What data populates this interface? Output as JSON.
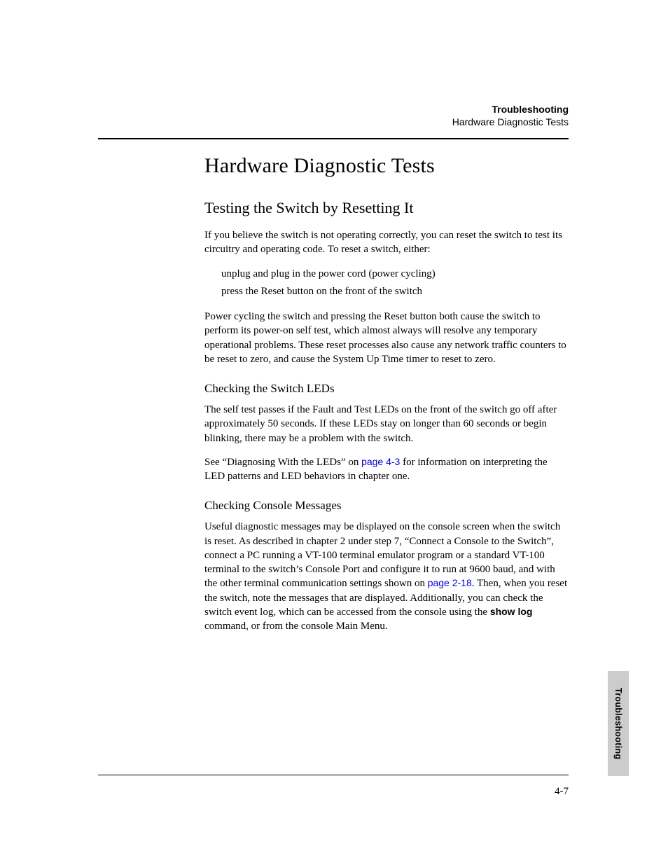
{
  "header": {
    "chapter": "Troubleshooting",
    "section": "Hardware Diagnostic Tests"
  },
  "h1": "Hardware Diagnostic Tests",
  "h2": "Testing the Switch by Resetting It",
  "p1": "If you believe the switch is not operating correctly, you can reset the switch to test its circuitry and operating code. To reset a switch, either:",
  "list": {
    "i1": "unplug and plug in the power cord (power cycling)",
    "i2": "press the Reset button on the front of the switch"
  },
  "p2": "Power cycling the switch and pressing the Reset button both cause the switch to perform its power-on self test, which almost always will resolve any temporary operational problems. These reset processes also cause any network traffic counters to be reset to zero, and cause the System Up Time timer to reset to zero.",
  "h3a": "Checking the Switch LEDs",
  "p3": "The self test passes if the Fault and Test LEDs on the front of the switch go off after approximately 50 seconds. If these LEDs stay on longer than 60 seconds or begin blinking, there may be a problem with the switch.",
  "p4a": "See “Diagnosing With the LEDs” on ",
  "p4_link": "page 4-3",
  "p4b": " for information on interpreting the LED patterns and LED behaviors in chapter one.",
  "h3b": "Checking Console Messages",
  "p5a": "Useful diagnostic messages may be displayed on the console screen when the switch is reset. As described in chapter 2 under step 7, “Connect a Console to the Switch”, connect a PC running a VT-100 terminal emulator program or a standard VT-100 terminal to the switch’s Console Port and configure it to run at 9600 baud, and with the other terminal communication settings shown on ",
  "p5_link": "page 2-18",
  "p5b": ". Then, when you reset the switch, note the messages that are displayed. Additionally, you can check the switch event log, which can be accessed from the console using the ",
  "p5_cmd": "show log",
  "p5c": " command, or from the console Main Menu.",
  "pageno": "4-7",
  "sidetab": "Troubleshooting",
  "colors": {
    "link": "#0000cc",
    "tab_bg": "#cccccc",
    "text": "#000000",
    "bg": "#ffffff"
  }
}
